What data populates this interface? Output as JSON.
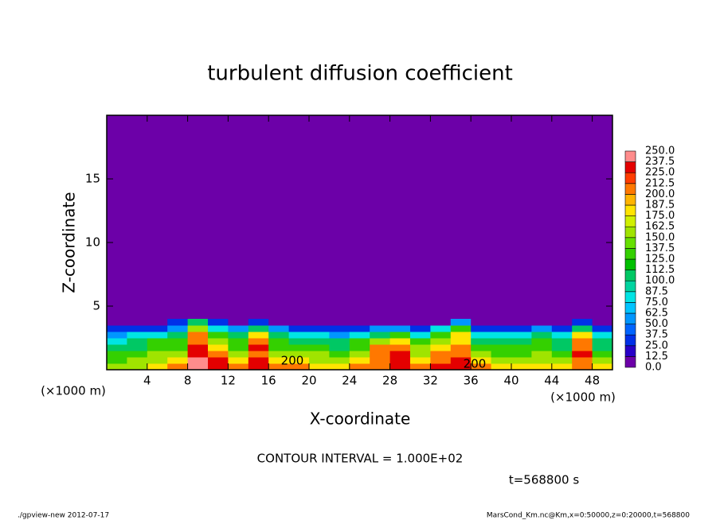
{
  "chart_data": {
    "type": "contour",
    "title": "turbulent diffusion coefficient",
    "xlabel": "X-coordinate",
    "ylabel": "Z-coordinate",
    "x_unit": "(×1000 m)",
    "y_unit": "(×1000 m)",
    "xlim": [
      0,
      50
    ],
    "ylim": [
      0,
      20
    ],
    "xticks": [
      4,
      8,
      12,
      16,
      20,
      24,
      28,
      32,
      36,
      40,
      44,
      48
    ],
    "yticks": [
      5,
      10,
      15
    ],
    "x": [
      1,
      3,
      5,
      7,
      9,
      11,
      13,
      15,
      17,
      19,
      21,
      23,
      25,
      27,
      29,
      31,
      33,
      35,
      37,
      39,
      41,
      43,
      45,
      47,
      49
    ],
    "y": [
      0.25,
      0.75,
      1.25,
      1.75,
      2.25,
      2.75,
      3.25,
      3.75
    ],
    "z": [
      [
        150,
        150,
        175,
        200,
        250,
        225,
        200,
        225,
        200,
        200,
        175,
        175,
        200,
        200,
        225,
        200,
        225,
        225,
        200,
        175,
        175,
        175,
        175,
        200,
        175
      ],
      [
        125,
        150,
        150,
        175,
        250,
        225,
        175,
        225,
        175,
        175,
        150,
        150,
        175,
        200,
        225,
        175,
        200,
        225,
        175,
        150,
        150,
        150,
        150,
        212,
        150
      ],
      [
        125,
        125,
        150,
        150,
        237,
        200,
        150,
        212,
        150,
        150,
        150,
        125,
        150,
        212,
        225,
        162,
        200,
        212,
        150,
        137,
        137,
        150,
        125,
        225,
        125
      ],
      [
        100,
        112,
        137,
        137,
        225,
        187,
        137,
        225,
        137,
        125,
        137,
        112,
        137,
        200,
        212,
        150,
        187,
        200,
        137,
        125,
        125,
        137,
        112,
        212,
        112
      ],
      [
        87,
        100,
        125,
        125,
        212,
        162,
        125,
        200,
        125,
        112,
        112,
        100,
        125,
        162,
        175,
        125,
        162,
        187,
        112,
        100,
        112,
        125,
        100,
        200,
        100
      ],
      [
        62,
        75,
        87,
        100,
        200,
        137,
        100,
        175,
        100,
        87,
        75,
        62,
        75,
        112,
        125,
        87,
        137,
        175,
        75,
        75,
        87,
        100,
        75,
        175,
        75
      ],
      [
        25,
        37,
        37,
        62,
        162,
        87,
        50,
        100,
        62,
        37,
        25,
        25,
        37,
        50,
        50,
        37,
        75,
        137,
        37,
        25,
        37,
        50,
        25,
        112,
        37
      ],
      [
        0,
        0,
        12,
        25,
        100,
        37,
        0,
        25,
        12,
        0,
        0,
        0,
        0,
        0,
        0,
        0,
        12,
        50,
        0,
        0,
        0,
        12,
        0,
        37,
        0
      ]
    ],
    "levels": [
      {
        "value": 0,
        "label": "0.0"
      },
      {
        "value": 12.5,
        "label": "12.5"
      },
      {
        "value": 25,
        "label": "25.0"
      },
      {
        "value": 37.5,
        "label": "37.5"
      },
      {
        "value": 50,
        "label": "50.0"
      },
      {
        "value": 62.5,
        "label": "62.5"
      },
      {
        "value": 75,
        "label": "75.0"
      },
      {
        "value": 87.5,
        "label": "87.5"
      },
      {
        "value": 100,
        "label": "100.0"
      },
      {
        "value": 112.5,
        "label": "112.5"
      },
      {
        "value": 125,
        "label": "125.0"
      },
      {
        "value": 137.5,
        "label": "137.5"
      },
      {
        "value": 150,
        "label": "150.0"
      },
      {
        "value": 162.5,
        "label": "162.5"
      },
      {
        "value": 175,
        "label": "175.0"
      },
      {
        "value": 187.5,
        "label": "187.5"
      },
      {
        "value": 200,
        "label": "200.0"
      },
      {
        "value": 212.5,
        "label": "212.5"
      },
      {
        "value": 225,
        "label": "225.0"
      },
      {
        "value": 237.5,
        "label": "237.5"
      },
      {
        "value": 250,
        "label": "250.0"
      }
    ],
    "colors": [
      "#6c00a8",
      "#2800c8",
      "#0030e8",
      "#0064ff",
      "#0096ff",
      "#00c4ff",
      "#00e4e4",
      "#00d4a0",
      "#00c864",
      "#00c000",
      "#34d000",
      "#66e000",
      "#a0e400",
      "#d0f000",
      "#ffe400",
      "#ffb400",
      "#ff7800",
      "#ff3c00",
      "#e40000",
      "#ff8c8c"
    ],
    "contour_labels": [
      "200",
      "200"
    ],
    "contour_interval": "CONTOUR INTERVAL = 1.000E+02",
    "time": "t=568800 s",
    "footer_left": "./gpview-new  2012-07-17",
    "footer_right": "MarsCond_Km.nc@Km,x=0:50000,z=0:20000,t=568800"
  }
}
